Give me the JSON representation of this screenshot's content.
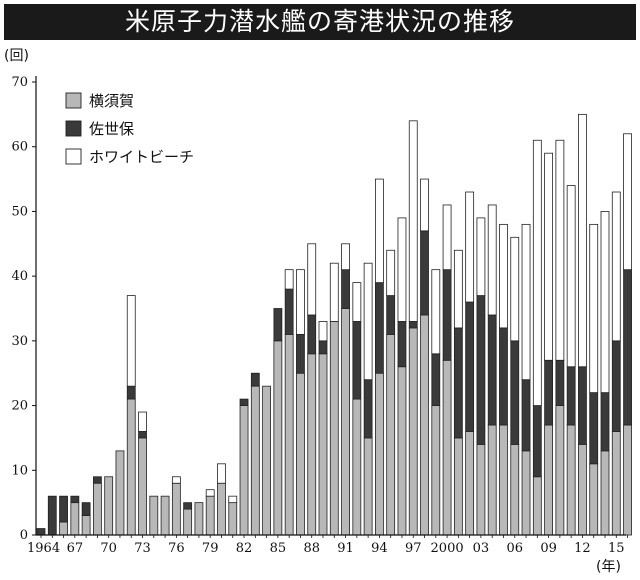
{
  "chart_data": {
    "type": "bar",
    "stacked": true,
    "title": "米原子力潜水艦の寄港状況の推移",
    "y_unit": "(回)",
    "x_unit": "(年)",
    "ylim": [
      0,
      70
    ],
    "y_ticks": [
      0,
      10,
      20,
      30,
      40,
      50,
      60,
      70
    ],
    "x_tick_labels": [
      {
        "year": 1964,
        "label": "1964"
      },
      {
        "year": 1967,
        "label": "67"
      },
      {
        "year": 1970,
        "label": "70"
      },
      {
        "year": 1973,
        "label": "73"
      },
      {
        "year": 1976,
        "label": "76"
      },
      {
        "year": 1979,
        "label": "79"
      },
      {
        "year": 1982,
        "label": "82"
      },
      {
        "year": 1985,
        "label": "85"
      },
      {
        "year": 1988,
        "label": "88"
      },
      {
        "year": 1991,
        "label": "91"
      },
      {
        "year": 1994,
        "label": "94"
      },
      {
        "year": 1997,
        "label": "97"
      },
      {
        "year": 2000,
        "label": "2000"
      },
      {
        "year": 2003,
        "label": "03"
      },
      {
        "year": 2006,
        "label": "06"
      },
      {
        "year": 2009,
        "label": "09"
      },
      {
        "year": 2012,
        "label": "12"
      },
      {
        "year": 2015,
        "label": "15"
      }
    ],
    "years": [
      1964,
      1965,
      1966,
      1967,
      1968,
      1969,
      1970,
      1971,
      1972,
      1973,
      1974,
      1975,
      1976,
      1977,
      1978,
      1979,
      1980,
      1981,
      1982,
      1983,
      1984,
      1985,
      1986,
      1987,
      1988,
      1989,
      1990,
      1991,
      1992,
      1993,
      1994,
      1995,
      1996,
      1997,
      1998,
      1999,
      2000,
      2001,
      2002,
      2003,
      2004,
      2005,
      2006,
      2007,
      2008,
      2009,
      2010,
      2011,
      2012,
      2013,
      2014,
      2015,
      2016
    ],
    "series": [
      {
        "name": "横須賀",
        "color": "#b8b8b8",
        "values": [
          0,
          0,
          2,
          5,
          3,
          8,
          9,
          13,
          21,
          15,
          6,
          6,
          8,
          4,
          5,
          6,
          8,
          5,
          20,
          23,
          23,
          30,
          31,
          25,
          28,
          28,
          33,
          35,
          21,
          15,
          25,
          31,
          26,
          32,
          34,
          20,
          27,
          15,
          16,
          14,
          17,
          17,
          14,
          13,
          9,
          17,
          20,
          17,
          14,
          11,
          13,
          16,
          17
        ]
      },
      {
        "name": "佐世保",
        "color": "#3a3a3a",
        "values": [
          1,
          6,
          4,
          1,
          2,
          1,
          0,
          0,
          2,
          1,
          0,
          0,
          0,
          1,
          0,
          0,
          0,
          0,
          1,
          2,
          0,
          5,
          7,
          6,
          6,
          2,
          0,
          6,
          12,
          9,
          14,
          6,
          7,
          1,
          13,
          8,
          14,
          17,
          20,
          23,
          17,
          15,
          16,
          11,
          11,
          10,
          7,
          9,
          12,
          11,
          9,
          14,
          24
        ]
      },
      {
        "name": "ホワイトビーチ",
        "color": "#ffffff",
        "values": [
          0,
          0,
          0,
          0,
          0,
          0,
          0,
          0,
          14,
          3,
          0,
          0,
          1,
          0,
          0,
          1,
          3,
          1,
          0,
          0,
          0,
          0,
          3,
          10,
          11,
          3,
          9,
          4,
          6,
          18,
          16,
          7,
          16,
          31,
          8,
          13,
          10,
          12,
          17,
          12,
          17,
          16,
          16,
          24,
          41,
          32,
          34,
          28,
          39,
          26,
          28,
          23,
          21
        ]
      }
    ],
    "grid": false,
    "legend_position": "top-left"
  }
}
